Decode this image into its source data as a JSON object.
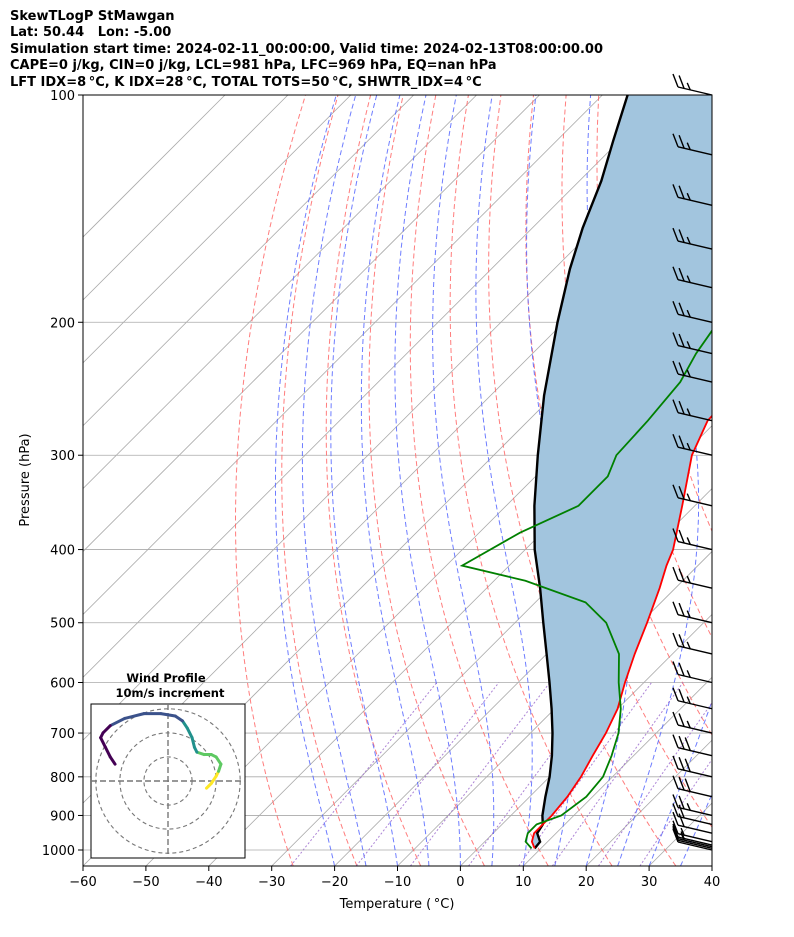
{
  "header": {
    "line1": "SkewTLogP StMawgan",
    "line2": "Lat: 50.44   Lon: -5.00",
    "line3": "Simulation start time: 2024-02-11_00:00:00, Valid time: 2024-02-13T08:00:00.00",
    "line4": "CAPE=0 j/kg, CIN=0 j/kg, LCL=981 hPa, LFC=969 hPa, EQ=nan hPa",
    "line5": "LFT IDX=8$^\\circ$C, K IDX=28$^\\circ$C, TOTAL TOTS=50$^\\circ$C, SHWTR_IDX=4$^\\circ$C"
  },
  "colors": {
    "temperature": "#ff0000",
    "dewpoint": "#008000",
    "parcel": "#000000",
    "shading": "#a2c5de",
    "dry_adiabats": "#ff6666",
    "moist_adiabats": "#5566ff",
    "mixing_ratio": "#9966cc",
    "isotherms": "#aaaaaa",
    "isobars": "#aaaaaa",
    "hodograph_path": [
      "#440154",
      "#3b528b",
      "#21918c",
      "#5ec962",
      "#fde725"
    ]
  },
  "chart_data": {
    "type": "line",
    "title": "SkewTLogP StMawgan",
    "xlabel": "Temperature ($^\\circ$C)",
    "ylabel": "Pressure (hPa)",
    "x_scale": "skewed",
    "y_scale": "log",
    "xlim": [
      -60,
      40
    ],
    "ylim": [
      1050,
      100
    ],
    "x_ticks": [
      -60,
      -50,
      -40,
      -30,
      -20,
      -10,
      0,
      10,
      20,
      30,
      40
    ],
    "x_tick_labels": [
      "−60",
      "−50",
      "−40",
      "−30",
      "−20",
      "−10",
      "0",
      "10",
      "20",
      "30",
      "40"
    ],
    "y_ticks": [
      1000,
      900,
      800,
      700,
      600,
      500,
      400,
      300,
      200,
      100
    ],
    "y_tick_labels": [
      "1000",
      "900",
      "800",
      "700",
      "600",
      "500",
      "400",
      "300",
      "200",
      "100"
    ],
    "grid": true,
    "series": [
      {
        "key": "temperature",
        "p": [
          995,
          975,
          950,
          925,
          900,
          850,
          800,
          750,
          700,
          650,
          600,
          550,
          500,
          450,
          420,
          400,
          350,
          300,
          270,
          250,
          230,
          200,
          170,
          150,
          130,
          115,
          100
        ],
        "t": [
          9,
          7.5,
          6.5,
          6.5,
          6.5,
          6,
          5,
          3.5,
          2,
          0,
          -3,
          -6,
          -9,
          -12.5,
          -15,
          -16.5,
          -22,
          -28.5,
          -31.5,
          -31.8,
          -33.5,
          -37.5,
          -42.5,
          -47.5,
          -54,
          -60,
          -67
        ]
      },
      {
        "key": "dewpoint",
        "p": [
          995,
          975,
          950,
          925,
          900,
          850,
          800,
          750,
          700,
          650,
          600,
          550,
          500,
          470,
          440,
          420,
          380,
          350,
          320,
          300,
          270,
          240,
          220,
          200,
          180,
          170,
          150,
          130,
          115,
          100
        ],
        "t": [
          8.5,
          6.5,
          5.5,
          5.5,
          8,
          9,
          8.5,
          6.5,
          4,
          0.5,
          -4,
          -8.5,
          -15.5,
          -22,
          -35,
          -47.5,
          -43.5,
          -38.5,
          -38.5,
          -40.5,
          -41,
          -42,
          -44,
          -45.5,
          -49,
          -52,
          -55,
          -60,
          -67,
          -74
        ]
      },
      {
        "key": "parcel",
        "p": [
          995,
          975,
          950,
          925,
          900,
          850,
          800,
          750,
          700,
          650,
          600,
          550,
          500,
          450,
          400,
          350,
          300,
          250,
          200,
          170,
          150,
          130,
          115,
          100
        ],
        "t": [
          9,
          8.8,
          7,
          6.5,
          5,
          2.5,
          0,
          -3,
          -6.5,
          -10.5,
          -15,
          -20,
          -25.5,
          -31.5,
          -38.5,
          -45.5,
          -53,
          -61.5,
          -71,
          -77.5,
          -82,
          -86.5,
          -91,
          -96
        ]
      }
    ],
    "wind_barbs": {
      "p": [
        1000,
        995,
        990,
        985,
        975,
        950,
        925,
        900,
        850,
        800,
        750,
        700,
        650,
        600,
        550,
        500,
        450,
        400,
        350,
        300,
        270,
        240,
        220,
        200,
        180,
        160,
        140,
        120,
        100
      ],
      "speed_kt": [
        10,
        10,
        15,
        15,
        15,
        20,
        20,
        25,
        30,
        30,
        30,
        25,
        25,
        25,
        25,
        25,
        25,
        25,
        25,
        25,
        25,
        25,
        25,
        25,
        25,
        25,
        25,
        25,
        25
      ]
    },
    "hodograph": {
      "title": "Wind Profile",
      "subtitle": "10m/s increment",
      "rings_ms": [
        10,
        20,
        30
      ],
      "u": [
        16,
        17,
        18,
        20,
        21,
        22,
        20,
        18,
        15,
        12,
        11,
        10,
        8,
        6,
        3,
        -3,
        -10,
        -18,
        -24,
        -27,
        -28,
        -26,
        -24,
        -22
      ],
      "v": [
        -3,
        -2,
        -1,
        2,
        4,
        7,
        10,
        11,
        11,
        12,
        14,
        18,
        22,
        25,
        27,
        28,
        28,
        26,
        23,
        20,
        18,
        14,
        10,
        7
      ]
    }
  }
}
